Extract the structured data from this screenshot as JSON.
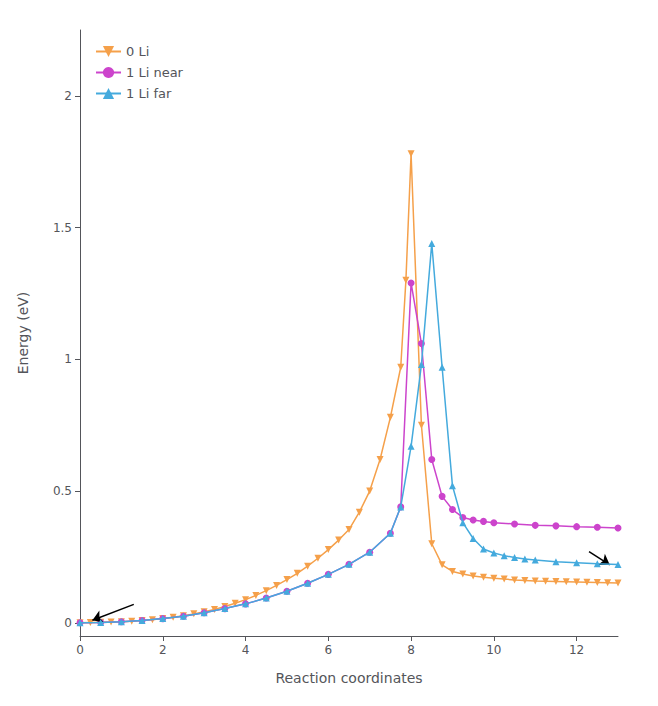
{
  "chart_data": {
    "type": "line",
    "xlabel": "Reaction coordinates",
    "ylabel": "Energy (eV)",
    "xlim": [
      0,
      13
    ],
    "ylim": [
      -0.05,
      2.25
    ],
    "xticks": [
      0,
      2,
      4,
      6,
      8,
      10,
      12
    ],
    "yticks": [
      0.0,
      0.5,
      1.0,
      1.5,
      2.0
    ],
    "grid": false,
    "legend": "upper left",
    "series": [
      {
        "name": "0 Li",
        "color": "#F5A04A",
        "marker": "triangle_down",
        "x": [
          0.0,
          0.25,
          0.5,
          0.75,
          1.0,
          1.25,
          1.5,
          1.75,
          2.0,
          2.25,
          2.5,
          2.75,
          3.0,
          3.25,
          3.5,
          3.75,
          4.0,
          4.25,
          4.5,
          4.75,
          5.0,
          5.25,
          5.5,
          5.75,
          6.0,
          6.25,
          6.5,
          6.75,
          7.0,
          7.25,
          7.5,
          7.75,
          7.875,
          8.0,
          8.25,
          8.5,
          8.75,
          9.0,
          9.25,
          9.5,
          9.75,
          10.0,
          10.25,
          10.5,
          10.75,
          11.0,
          11.25,
          11.5,
          11.75,
          12.0,
          12.25,
          12.5,
          12.75,
          13.0
        ],
        "values": [
          0.0,
          0.001,
          0.002,
          0.003,
          0.004,
          0.006,
          0.009,
          0.012,
          0.016,
          0.021,
          0.027,
          0.034,
          0.042,
          0.051,
          0.062,
          0.074,
          0.088,
          0.104,
          0.122,
          0.142,
          0.164,
          0.188,
          0.215,
          0.245,
          0.278,
          0.314,
          0.354,
          0.42,
          0.5,
          0.62,
          0.78,
          0.97,
          1.3,
          1.78,
          0.75,
          0.3,
          0.22,
          0.195,
          0.185,
          0.178,
          0.173,
          0.169,
          0.166,
          0.163,
          0.161,
          0.159,
          0.158,
          0.157,
          0.156,
          0.155,
          0.154,
          0.153,
          0.152,
          0.151
        ]
      },
      {
        "name": "1 Li near",
        "color": "#CC44CC",
        "marker": "circle",
        "x": [
          0.0,
          0.5,
          1.0,
          1.5,
          2.0,
          2.5,
          3.0,
          3.5,
          4.0,
          4.5,
          5.0,
          5.5,
          6.0,
          6.5,
          7.0,
          7.5,
          7.75,
          8.0,
          8.25,
          8.5,
          8.75,
          9.0,
          9.25,
          9.5,
          9.75,
          10.0,
          10.5,
          11.0,
          11.5,
          12.0,
          12.5,
          13.0
        ],
        "values": [
          0.0,
          0.001,
          0.004,
          0.009,
          0.016,
          0.025,
          0.038,
          0.054,
          0.072,
          0.094,
          0.12,
          0.15,
          0.184,
          0.222,
          0.268,
          0.34,
          0.44,
          1.29,
          1.06,
          0.62,
          0.48,
          0.43,
          0.4,
          0.39,
          0.385,
          0.38,
          0.375,
          0.37,
          0.368,
          0.365,
          0.363,
          0.36
        ]
      },
      {
        "name": "1 Li far",
        "color": "#44AADD",
        "marker": "triangle",
        "x": [
          0.0,
          0.5,
          1.0,
          1.5,
          2.0,
          2.5,
          3.0,
          3.5,
          4.0,
          4.5,
          5.0,
          5.5,
          6.0,
          6.5,
          7.0,
          7.5,
          7.75,
          8.0,
          8.25,
          8.5,
          8.75,
          9.0,
          9.25,
          9.5,
          9.75,
          10.0,
          10.25,
          10.5,
          10.75,
          11.0,
          11.5,
          12.0,
          12.5,
          13.0
        ],
        "values": [
          0.0,
          0.001,
          0.004,
          0.009,
          0.016,
          0.025,
          0.038,
          0.054,
          0.072,
          0.094,
          0.12,
          0.15,
          0.184,
          0.222,
          0.268,
          0.34,
          0.44,
          0.67,
          0.98,
          1.44,
          0.97,
          0.52,
          0.38,
          0.32,
          0.28,
          0.265,
          0.255,
          0.248,
          0.242,
          0.238,
          0.232,
          0.228,
          0.224,
          0.221
        ]
      }
    ],
    "arrows": [
      {
        "x1": 1.3,
        "y1": 0.07,
        "x2": 0.3,
        "y2": 0.01
      },
      {
        "x1": 12.3,
        "y1": 0.27,
        "x2": 12.8,
        "y2": 0.22
      }
    ]
  }
}
